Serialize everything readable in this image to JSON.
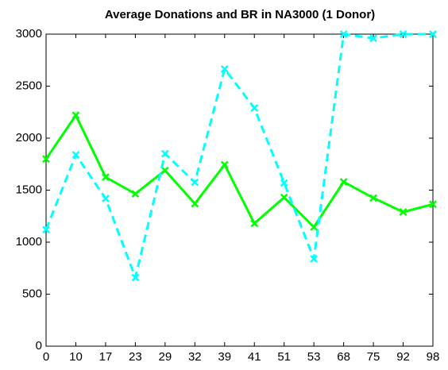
{
  "chart_data": {
    "type": "line",
    "title": "Average Donations and BR in NA3000 (1 Donor)",
    "categories": [
      "0",
      "10",
      "17",
      "23",
      "29",
      "32",
      "39",
      "41",
      "51",
      "53",
      "68",
      "75",
      "92",
      "98"
    ],
    "series": [
      {
        "color": "#00ff00",
        "style": "solid",
        "marker": "x",
        "values": [
          1800,
          2220,
          1625,
          1465,
          1690,
          1370,
          1745,
          1180,
          1430,
          1145,
          1580,
          1425,
          1290,
          1365
        ]
      },
      {
        "color": "#00ffff",
        "style": "dashed",
        "marker": "x",
        "values": [
          1120,
          1840,
          1420,
          660,
          1850,
          1575,
          2665,
          2290,
          1570,
          840,
          3000,
          2960,
          3000,
          3000
        ]
      }
    ],
    "ylim": [
      0,
      3000
    ],
    "yticks": [
      0,
      500,
      1000,
      1500,
      2000,
      2500,
      3000
    ],
    "grid": false
  }
}
